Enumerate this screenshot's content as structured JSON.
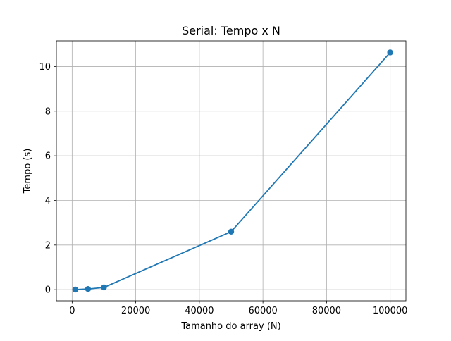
{
  "chart_data": {
    "type": "line",
    "title": "Serial: Tempo x N",
    "xlabel": "Tamanho do array (N)",
    "ylabel": "Tempo (s)",
    "xlim": [
      -4950,
      104950
    ],
    "ylim": [
      -0.5,
      11.15
    ],
    "xticks": [
      0,
      20000,
      40000,
      60000,
      80000,
      100000
    ],
    "xtick_labels": [
      "0",
      "20000",
      "40000",
      "60000",
      "80000",
      "100000"
    ],
    "yticks": [
      0,
      2,
      4,
      6,
      8,
      10
    ],
    "ytick_labels": [
      "0",
      "2",
      "4",
      "6",
      "8",
      "10"
    ],
    "grid": true,
    "series": [
      {
        "color": "#1f77b4",
        "marker": "circle",
        "x": [
          1000,
          5000,
          10000,
          50000,
          100000
        ],
        "y": [
          0.005,
          0.03,
          0.1,
          2.6,
          10.63
        ]
      }
    ]
  }
}
